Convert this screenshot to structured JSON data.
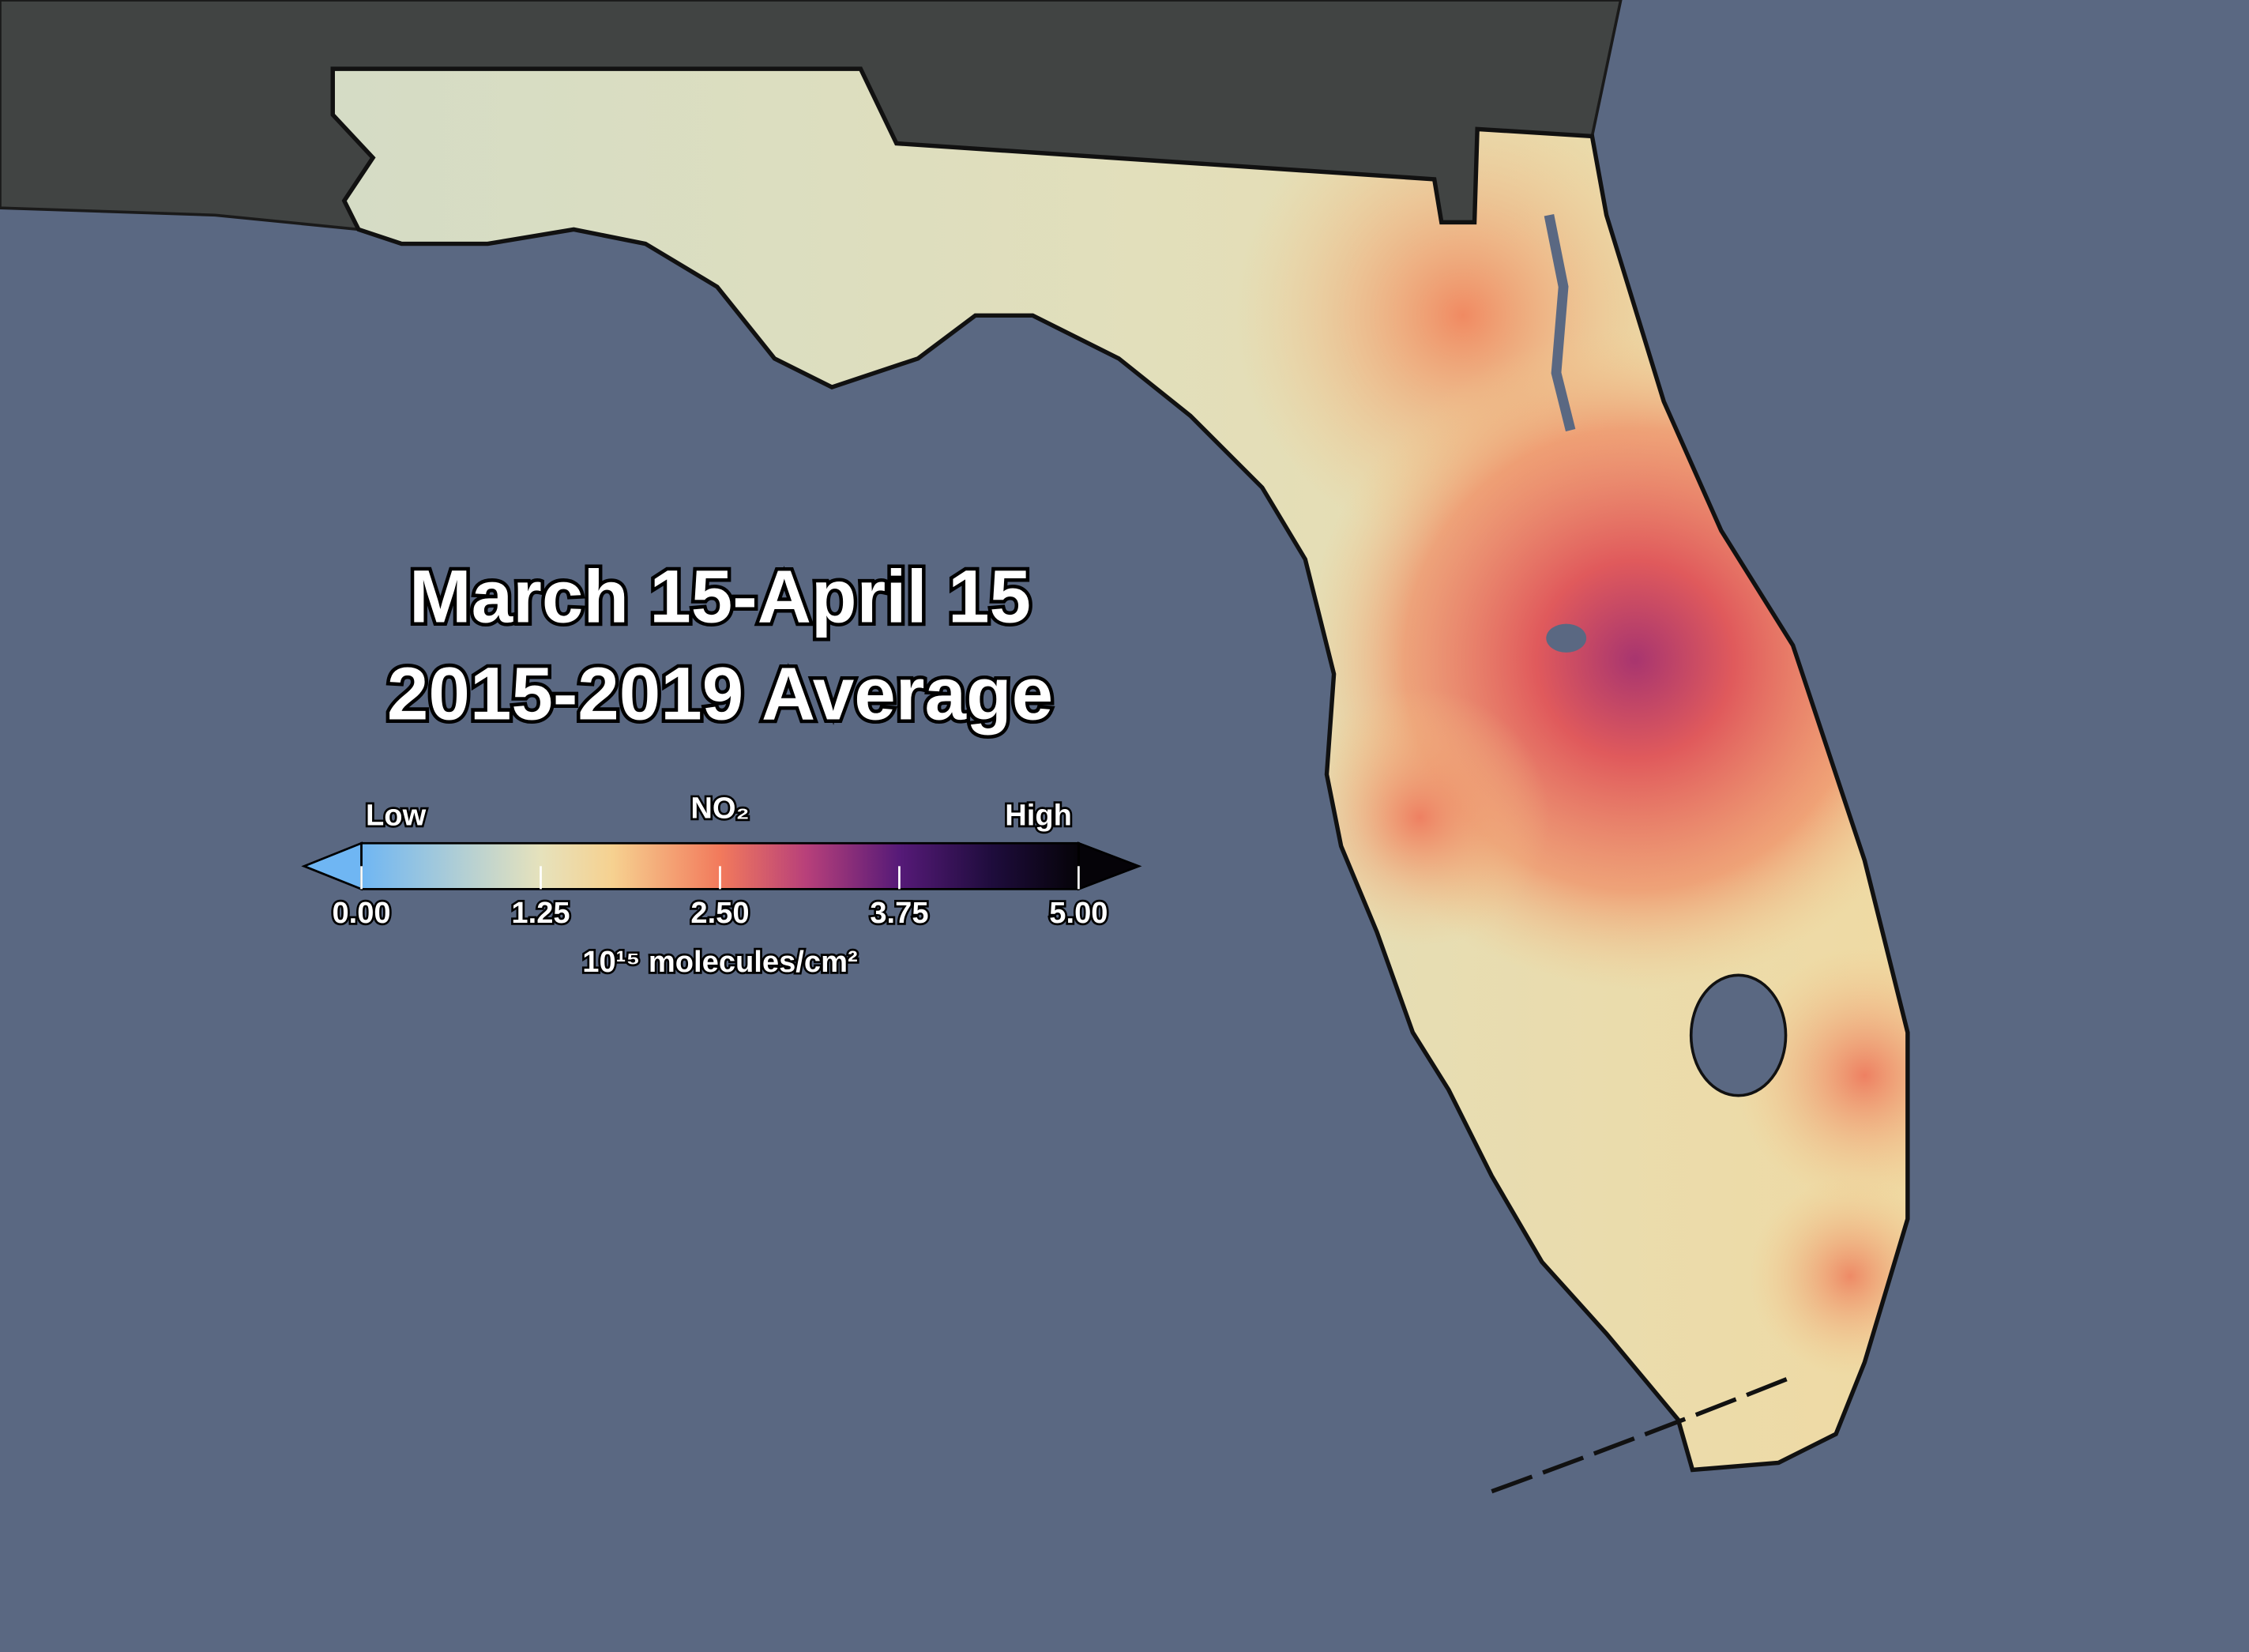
{
  "title": {
    "line1": "March 15-April 15",
    "line2": "2015-2019 Average"
  },
  "colorbar": {
    "label_low": "Low",
    "label_high": "High",
    "quantity": "NO₂",
    "unit": "10¹⁵ molecules/cm²",
    "range": [
      0,
      5
    ],
    "ticks": [
      {
        "value": 0,
        "label": "0.00"
      },
      {
        "value": 1.25,
        "label": "1.25"
      },
      {
        "value": 2.5,
        "label": "2.50"
      },
      {
        "value": 3.75,
        "label": "3.75"
      },
      {
        "value": 5,
        "label": "5.00"
      }
    ]
  }
}
